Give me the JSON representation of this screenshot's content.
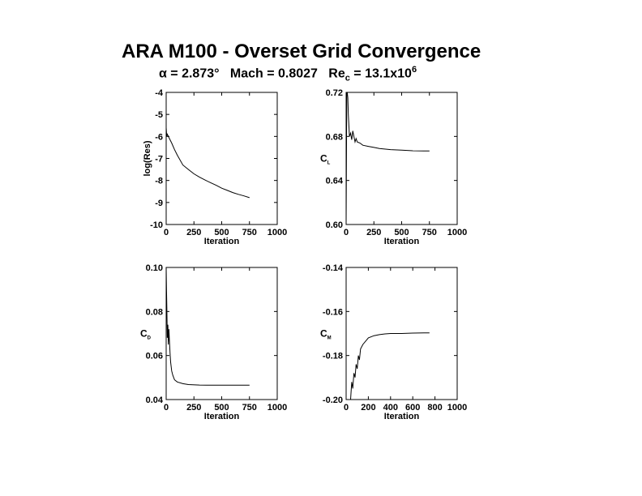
{
  "header": {
    "title": "ARA M100 - Overset Grid Convergence",
    "alpha_symbol": "α",
    "alpha_text": " = 2.873°",
    "mach_text": "Mach = 0.8027",
    "re_text": "Re",
    "re_sub": "c",
    "re_value": " = 13.1x10",
    "re_sup": "6"
  },
  "chart_data": [
    {
      "type": "line",
      "id": "residual",
      "xlabel": "Iteration",
      "ylabel": "log(Res)",
      "ylabel_sub": "",
      "xlim": [
        0,
        1000
      ],
      "ylim": [
        -10,
        -4
      ],
      "xticks": [
        "0",
        "250",
        "500",
        "750",
        "1000"
      ],
      "xtick_values": [
        0,
        250,
        500,
        750,
        1000
      ],
      "yticks": [
        "-10",
        "-9",
        "-8",
        "-7",
        "-6",
        "-5",
        "-4"
      ],
      "ytick_values": [
        -10,
        -9,
        -8,
        -7,
        -6,
        -5,
        -4
      ],
      "series": [
        {
          "x": [
            0,
            5,
            10,
            20,
            30,
            50,
            75,
            100,
            150,
            200,
            250,
            300,
            350,
            400,
            450,
            500,
            550,
            600,
            650,
            700,
            750
          ],
          "y": [
            -5.6,
            -6.0,
            -5.9,
            -6.0,
            -6.1,
            -6.3,
            -6.6,
            -6.85,
            -7.3,
            -7.5,
            -7.7,
            -7.85,
            -7.98,
            -8.1,
            -8.22,
            -8.35,
            -8.45,
            -8.55,
            -8.63,
            -8.7,
            -8.78
          ]
        }
      ]
    },
    {
      "type": "line",
      "id": "cl",
      "xlabel": "Iteration",
      "ylabel": "C",
      "ylabel_sub": "L",
      "xlim": [
        0,
        1000
      ],
      "ylim": [
        0.6,
        0.72
      ],
      "xticks": [
        "0",
        "250",
        "500",
        "750",
        "1000"
      ],
      "xtick_values": [
        0,
        250,
        500,
        750,
        1000
      ],
      "yticks": [
        "0.60",
        "0.64",
        "0.68",
        "0.72"
      ],
      "ytick_values": [
        0.6,
        0.64,
        0.68,
        0.72
      ],
      "series": [
        {
          "x": [
            0,
            3,
            6,
            10,
            15,
            20,
            30,
            40,
            50,
            60,
            70,
            80,
            90,
            100,
            125,
            150,
            200,
            250,
            300,
            400,
            500,
            600,
            700,
            750
          ],
          "y": [
            0.6,
            0.66,
            0.72,
            0.72,
            0.715,
            0.7,
            0.68,
            0.683,
            0.677,
            0.685,
            0.68,
            0.675,
            0.678,
            0.675,
            0.674,
            0.672,
            0.671,
            0.67,
            0.669,
            0.668,
            0.6675,
            0.667,
            0.6668,
            0.6668
          ]
        }
      ]
    },
    {
      "type": "line",
      "id": "cd",
      "xlabel": "Iteration",
      "ylabel": "C",
      "ylabel_sub": "D",
      "xlim": [
        0,
        1000
      ],
      "ylim": [
        0.04,
        0.1
      ],
      "xticks": [
        "0",
        "250",
        "500",
        "750",
        "1000"
      ],
      "xtick_values": [
        0,
        250,
        500,
        750,
        1000
      ],
      "yticks": [
        "0.04",
        "0.06",
        "0.08",
        "0.10"
      ],
      "ytick_values": [
        0.04,
        0.06,
        0.08,
        0.1
      ],
      "series": [
        {
          "x": [
            0,
            3,
            6,
            10,
            15,
            20,
            25,
            30,
            35,
            40,
            50,
            60,
            75,
            100,
            150,
            200,
            300,
            400,
            500,
            600,
            700,
            750
          ],
          "y": [
            0.1,
            0.09,
            0.082,
            0.068,
            0.074,
            0.065,
            0.072,
            0.066,
            0.061,
            0.057,
            0.053,
            0.051,
            0.049,
            0.048,
            0.0472,
            0.0468,
            0.0466,
            0.0465,
            0.0465,
            0.0465,
            0.0465,
            0.0465
          ]
        }
      ]
    },
    {
      "type": "line",
      "id": "cm",
      "xlabel": "Iteration",
      "ylabel": "C",
      "ylabel_sub": "M",
      "xlim": [
        0,
        1000
      ],
      "ylim": [
        -0.2,
        -0.14
      ],
      "xticks": [
        "0",
        "200",
        "400",
        "600",
        "800",
        "1000"
      ],
      "xtick_values": [
        0,
        200,
        400,
        600,
        800,
        1000
      ],
      "yticks": [
        "-0.20",
        "-0.18",
        "-0.16",
        "-0.14"
      ],
      "ytick_values": [
        -0.2,
        -0.18,
        -0.16,
        -0.14
      ],
      "series": [
        {
          "x": [
            0,
            40,
            50,
            60,
            70,
            80,
            90,
            100,
            110,
            120,
            130,
            150,
            200,
            250,
            300,
            350,
            400,
            500,
            600,
            700,
            750
          ],
          "y": [
            -0.2,
            -0.2,
            -0.192,
            -0.195,
            -0.188,
            -0.19,
            -0.184,
            -0.186,
            -0.18,
            -0.182,
            -0.177,
            -0.175,
            -0.172,
            -0.171,
            -0.1705,
            -0.1702,
            -0.17,
            -0.17,
            -0.1698,
            -0.1697,
            -0.1697
          ]
        }
      ]
    }
  ]
}
